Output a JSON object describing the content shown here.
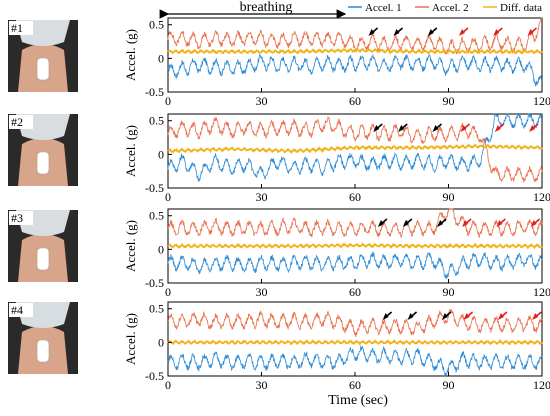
{
  "figure": {
    "annotation": "breathing",
    "x_axis_title": "Time (sec)"
  },
  "chart_data": [
    {
      "type": "line",
      "panel_label": "#1",
      "ylabel": "Accel. (g)",
      "xlim": [
        0,
        120
      ],
      "ylim": [
        -0.5,
        0.6
      ],
      "x_ticks": [
        0,
        30,
        60,
        90,
        120
      ],
      "y_ticks": [
        -0.5,
        0,
        0.5
      ],
      "legend": [
        "Accel. 1",
        "Accel. 2",
        "Diff. data"
      ],
      "series": [
        {
          "name": "Accel. 1",
          "color": "#2e8bd6",
          "x": [
            0,
            5,
            10,
            15,
            20,
            25,
            30,
            35,
            40,
            45,
            50,
            55,
            60,
            65,
            70,
            75,
            80,
            85,
            90,
            95,
            100,
            105,
            110,
            115,
            120
          ],
          "y": [
            -0.2,
            -0.15,
            -0.1,
            -0.12,
            -0.15,
            -0.13,
            -0.05,
            -0.1,
            -0.08,
            -0.12,
            -0.07,
            -0.1,
            -0.08,
            -0.06,
            -0.1,
            -0.05,
            -0.08,
            -0.05,
            -0.15,
            -0.05,
            -0.1,
            -0.08,
            -0.12,
            -0.1,
            -0.4
          ]
        },
        {
          "name": "Accel. 2",
          "color": "#e8704a",
          "x": [
            0,
            5,
            10,
            15,
            20,
            25,
            30,
            35,
            40,
            45,
            50,
            55,
            60,
            65,
            70,
            75,
            80,
            85,
            90,
            95,
            100,
            105,
            110,
            115,
            120
          ],
          "y": [
            0.3,
            0.3,
            0.25,
            0.3,
            0.28,
            0.3,
            0.3,
            0.25,
            0.28,
            0.3,
            0.28,
            0.3,
            0.2,
            0.25,
            0.2,
            0.25,
            0.2,
            0.25,
            0.15,
            0.2,
            0.2,
            0.25,
            0.2,
            0.22,
            0.5
          ]
        },
        {
          "name": "Diff. data",
          "color": "#f2b21a",
          "x": [
            0,
            20,
            40,
            60,
            80,
            100,
            120
          ],
          "y": [
            0.1,
            0.1,
            0.1,
            0.12,
            0.1,
            0.1,
            0.1
          ]
        }
      ]
    },
    {
      "type": "line",
      "panel_label": "#2",
      "ylabel": "Accel. (g)",
      "xlim": [
        0,
        120
      ],
      "ylim": [
        -0.5,
        0.6
      ],
      "x_ticks": [
        0,
        30,
        60,
        90,
        120
      ],
      "y_ticks": [
        -0.5,
        0,
        0.5
      ],
      "legend": [],
      "series": [
        {
          "name": "Accel. 1",
          "color": "#2e8bd6",
          "x": [
            0,
            5,
            10,
            15,
            20,
            25,
            30,
            35,
            40,
            45,
            50,
            55,
            60,
            65,
            70,
            75,
            80,
            85,
            90,
            95,
            100,
            105,
            110,
            115,
            120
          ],
          "y": [
            -0.2,
            -0.1,
            -0.3,
            -0.1,
            -0.2,
            -0.15,
            -0.3,
            -0.1,
            -0.2,
            -0.15,
            -0.2,
            -0.1,
            -0.1,
            -0.15,
            -0.1,
            -0.12,
            -0.1,
            -0.15,
            -0.1,
            -0.15,
            -0.1,
            0.5,
            0.5,
            0.5,
            0.5
          ]
        },
        {
          "name": "Accel. 2",
          "color": "#e8704a",
          "x": [
            0,
            5,
            10,
            15,
            20,
            25,
            30,
            35,
            40,
            45,
            50,
            55,
            60,
            65,
            70,
            75,
            80,
            85,
            90,
            95,
            100,
            105,
            110,
            115,
            120
          ],
          "y": [
            0.3,
            0.4,
            0.35,
            0.45,
            0.35,
            0.4,
            0.35,
            0.4,
            0.4,
            0.35,
            0.45,
            0.4,
            0.3,
            0.35,
            0.3,
            0.35,
            0.25,
            0.3,
            0.3,
            0.35,
            0.3,
            -0.3,
            -0.3,
            -0.3,
            -0.3
          ]
        },
        {
          "name": "Diff. data",
          "color": "#f2b21a",
          "x": [
            0,
            20,
            40,
            60,
            80,
            100,
            120
          ],
          "y": [
            0.05,
            0.08,
            0.05,
            0.1,
            0.1,
            0.12,
            0.1
          ]
        }
      ]
    },
    {
      "type": "line",
      "panel_label": "#3",
      "ylabel": "Accel. (g)",
      "xlim": [
        0,
        120
      ],
      "ylim": [
        -0.5,
        0.6
      ],
      "x_ticks": [
        0,
        30,
        60,
        90,
        120
      ],
      "y_ticks": [
        -0.5,
        0,
        0.5
      ],
      "legend": [],
      "series": [
        {
          "name": "Accel. 1",
          "color": "#2e8bd6",
          "x": [
            0,
            5,
            10,
            15,
            20,
            25,
            30,
            35,
            40,
            45,
            50,
            55,
            60,
            65,
            70,
            75,
            80,
            85,
            90,
            95,
            100,
            105,
            110,
            115,
            120
          ],
          "y": [
            -0.2,
            -0.2,
            -0.25,
            -0.22,
            -0.2,
            -0.25,
            -0.2,
            -0.22,
            -0.2,
            -0.2,
            -0.22,
            -0.2,
            -0.2,
            -0.15,
            -0.2,
            -0.15,
            -0.2,
            -0.15,
            -0.35,
            -0.2,
            -0.15,
            -0.2,
            -0.2,
            -0.15,
            -0.2
          ]
        },
        {
          "name": "Accel. 2",
          "color": "#e8704a",
          "x": [
            0,
            5,
            10,
            15,
            20,
            25,
            30,
            35,
            40,
            45,
            50,
            55,
            60,
            65,
            70,
            75,
            80,
            85,
            90,
            95,
            100,
            105,
            110,
            115,
            120
          ],
          "y": [
            0.3,
            0.32,
            0.3,
            0.35,
            0.3,
            0.32,
            0.3,
            0.32,
            0.35,
            0.3,
            0.32,
            0.3,
            0.3,
            0.32,
            0.3,
            0.3,
            0.32,
            0.3,
            0.6,
            0.35,
            0.3,
            0.32,
            0.3,
            0.35,
            0.3
          ]
        },
        {
          "name": "Diff. data",
          "color": "#f2b21a",
          "x": [
            0,
            20,
            40,
            60,
            80,
            100,
            120
          ],
          "y": [
            0.05,
            0.05,
            0.05,
            0.06,
            0.05,
            0.05,
            0.05
          ]
        }
      ]
    },
    {
      "type": "line",
      "panel_label": "#4",
      "ylabel": "Accel. (g)",
      "xlim": [
        0,
        120
      ],
      "ylim": [
        -0.5,
        0.6
      ],
      "x_ticks": [
        0,
        30,
        60,
        90,
        120
      ],
      "y_ticks": [
        -0.5,
        0,
        0.5
      ],
      "legend": [],
      "series": [
        {
          "name": "Accel. 1",
          "color": "#2e8bd6",
          "x": [
            0,
            5,
            10,
            15,
            20,
            25,
            30,
            35,
            40,
            45,
            50,
            55,
            60,
            65,
            70,
            75,
            80,
            85,
            90,
            95,
            100,
            105,
            110,
            115,
            120
          ],
          "y": [
            -0.3,
            -0.28,
            -0.3,
            -0.25,
            -0.3,
            -0.28,
            -0.3,
            -0.28,
            -0.3,
            -0.25,
            -0.3,
            -0.28,
            -0.15,
            -0.2,
            -0.2,
            -0.22,
            -0.2,
            -0.3,
            -0.4,
            -0.25,
            -0.3,
            -0.28,
            -0.3,
            -0.3,
            -0.3
          ]
        },
        {
          "name": "Accel. 2",
          "color": "#e8704a",
          "x": [
            0,
            5,
            10,
            15,
            20,
            25,
            30,
            35,
            40,
            45,
            50,
            55,
            60,
            65,
            70,
            75,
            80,
            85,
            90,
            95,
            100,
            105,
            110,
            115,
            120
          ],
          "y": [
            0.3,
            0.32,
            0.35,
            0.3,
            0.32,
            0.3,
            0.35,
            0.3,
            0.32,
            0.3,
            0.35,
            0.3,
            0.2,
            0.25,
            0.22,
            0.25,
            0.2,
            0.3,
            0.4,
            0.3,
            0.25,
            0.28,
            0.25,
            0.28,
            0.25
          ]
        },
        {
          "name": "Diff. data",
          "color": "#f2b21a",
          "x": [
            0,
            20,
            40,
            60,
            80,
            100,
            120
          ],
          "y": [
            0.0,
            0.0,
            0.0,
            0.0,
            0.0,
            0.0,
            0.0
          ]
        }
      ]
    }
  ]
}
